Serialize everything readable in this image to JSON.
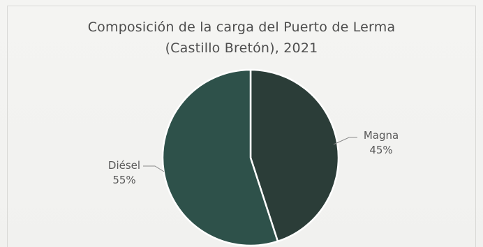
{
  "chart_data": {
    "type": "pie",
    "title": "Composición de la carga del Puerto de Lerma",
    "subtitle": "(Castillo Bretón),  2021",
    "series": [
      {
        "label": "Magna",
        "value": 45,
        "percent_label": "45%",
        "color": "#2b3d38"
      },
      {
        "label": "Diésel",
        "value": 55,
        "percent_label": "55%",
        "color": "#2e514a"
      }
    ],
    "legend": false,
    "grid": false
  }
}
